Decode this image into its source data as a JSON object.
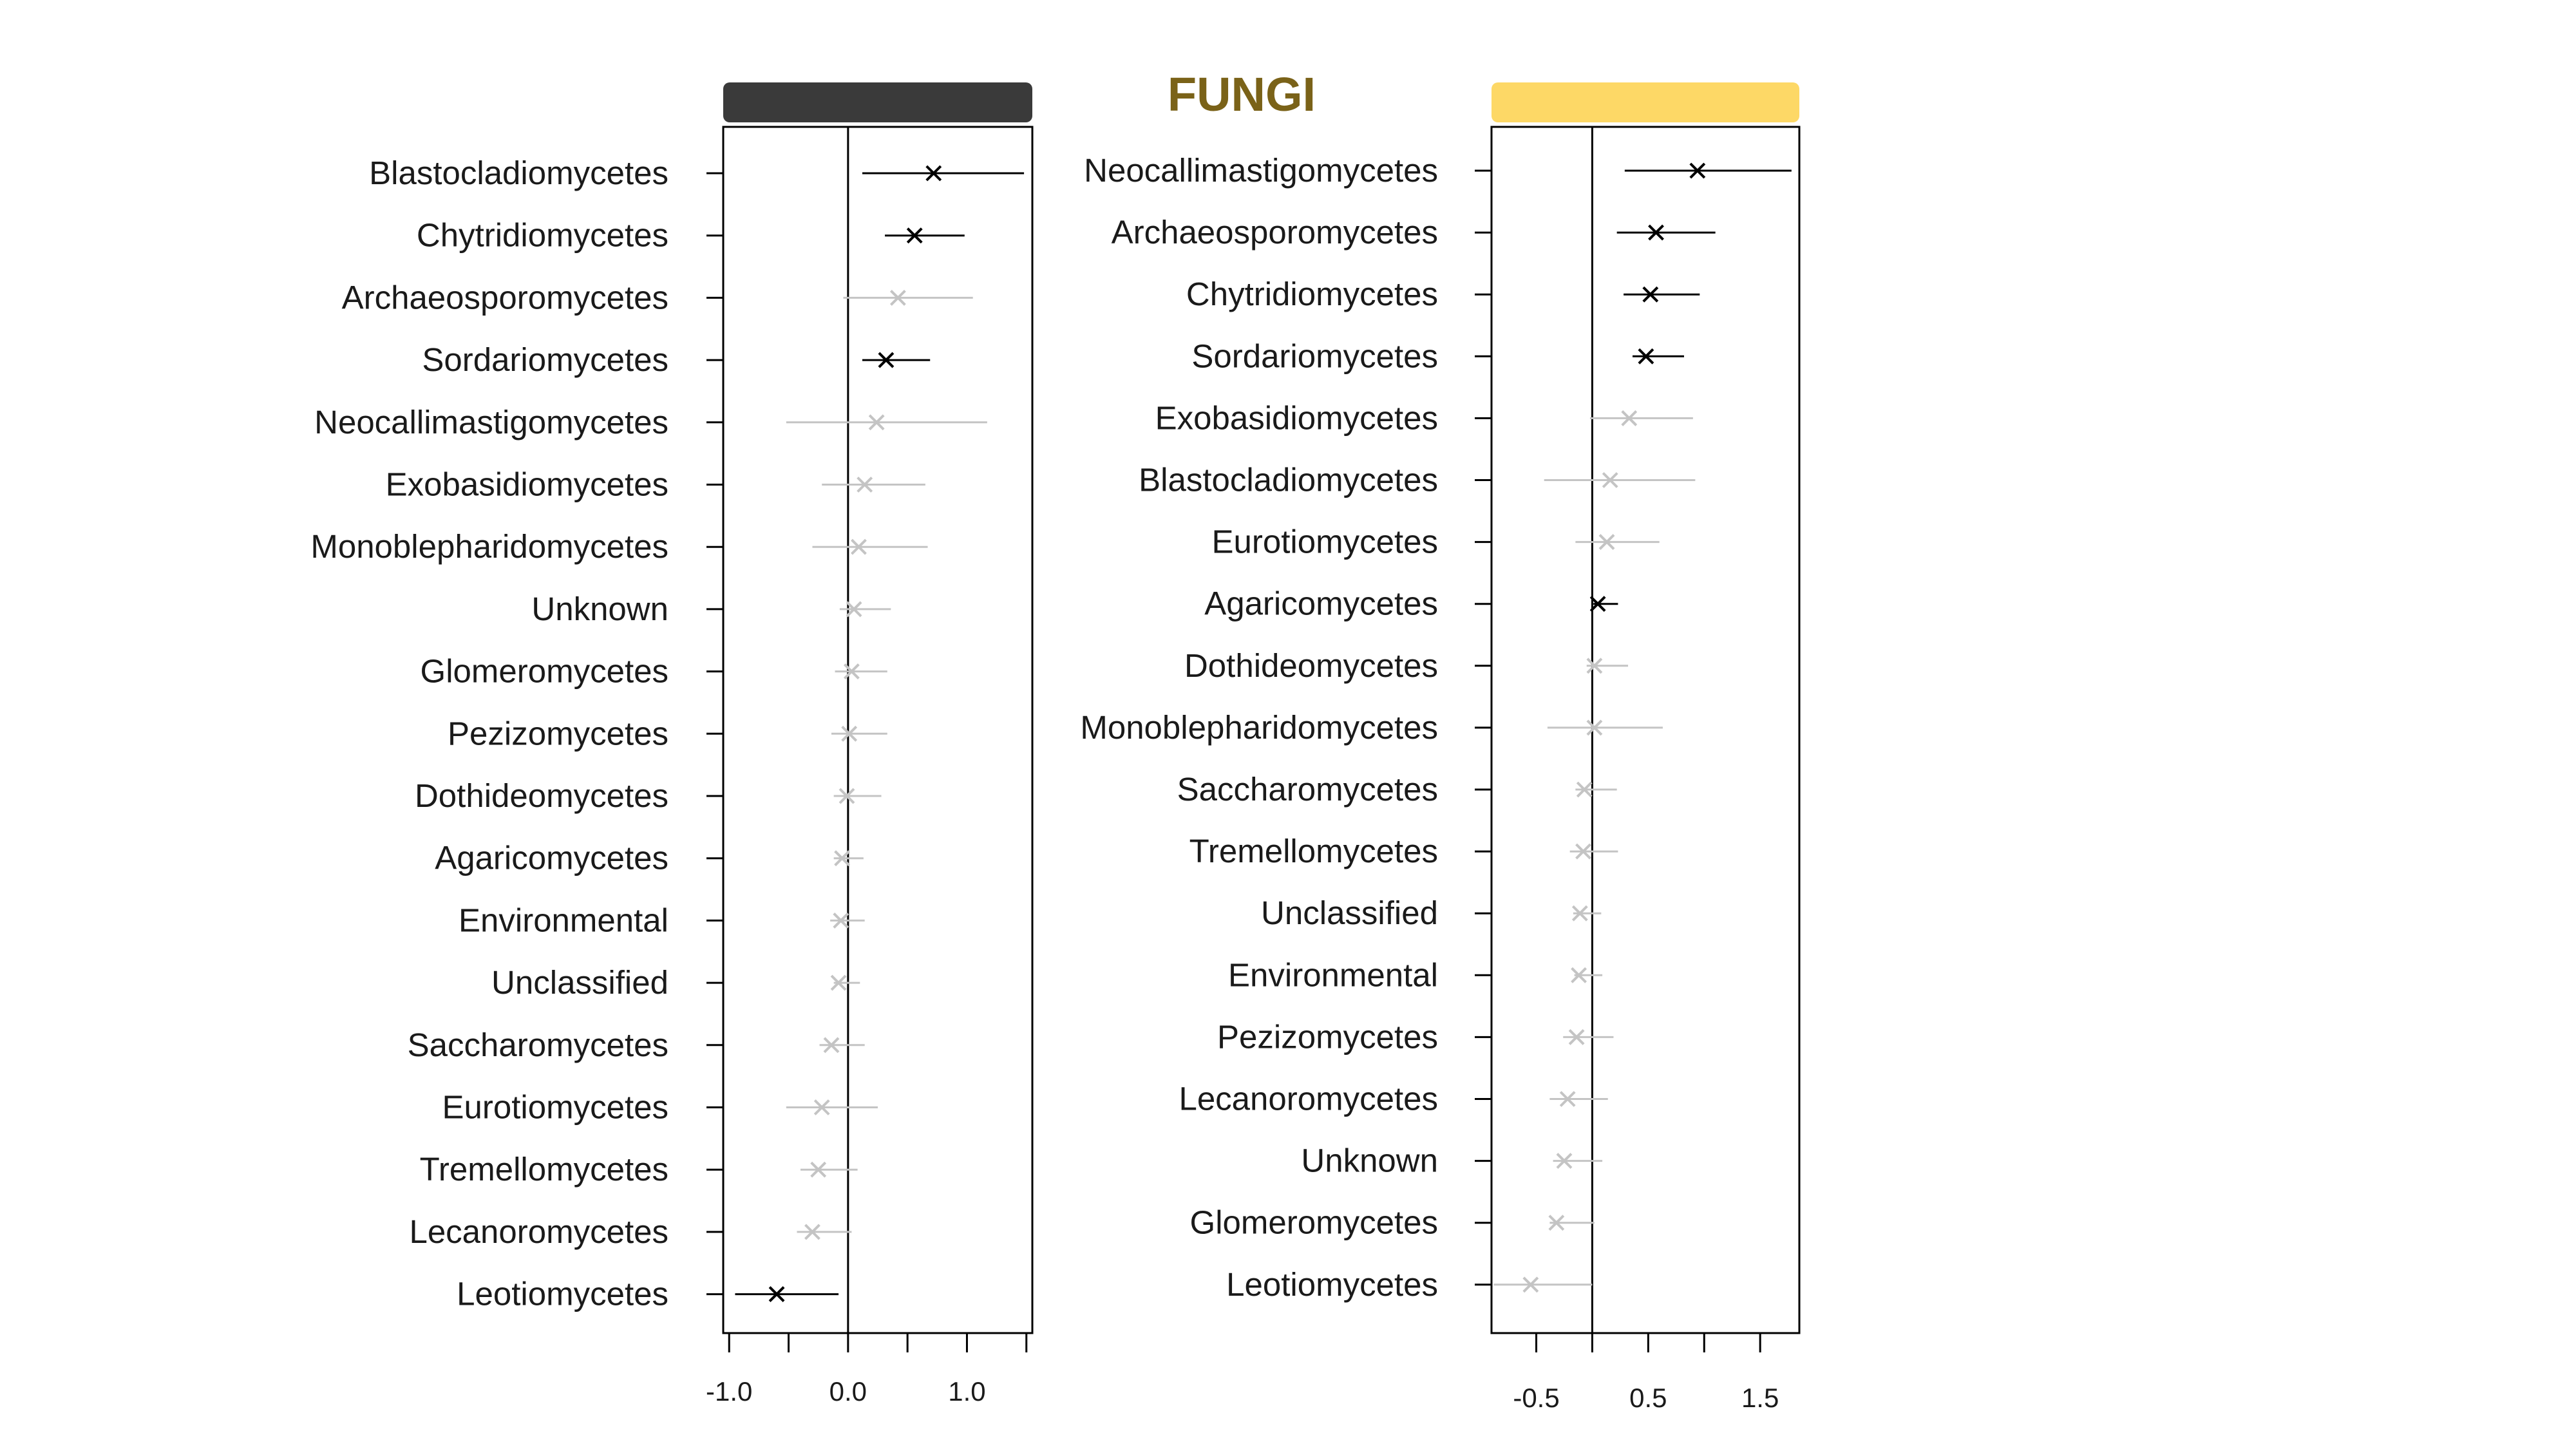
{
  "title": "FUNGI",
  "colors": {
    "title": "#7a6218",
    "left_header_bar": "#3a3a3a",
    "right_header_bar": "#fdd866",
    "significant": "#000000",
    "non_significant": "#c4c4c4",
    "axis": "#000000"
  },
  "chart_data": [
    {
      "type": "scatter",
      "style": "point-with-interval",
      "marker": "x",
      "header_bar_color": "#3a3a3a",
      "xlim": [
        -1.05,
        1.55
      ],
      "reference_line": 0,
      "x_ticks": [
        -1.0,
        -0.5,
        0.0,
        0.5,
        1.0,
        1.5
      ],
      "x_tick_labels": [
        "-1.0",
        "",
        "0.0",
        "",
        "1.0",
        ""
      ],
      "rows": [
        {
          "label": "Blastocladiomycetes",
          "est": 0.72,
          "lo": 0.12,
          "hi": 1.48,
          "significant": true
        },
        {
          "label": "Chytridiomycetes",
          "est": 0.56,
          "lo": 0.31,
          "hi": 0.98,
          "significant": true
        },
        {
          "label": "Archaeosporomycetes",
          "est": 0.42,
          "lo": -0.04,
          "hi": 1.05,
          "significant": false
        },
        {
          "label": "Sordariomycetes",
          "est": 0.32,
          "lo": 0.12,
          "hi": 0.69,
          "significant": true
        },
        {
          "label": "Neocallimastigomycetes",
          "est": 0.24,
          "lo": -0.52,
          "hi": 1.17,
          "significant": false
        },
        {
          "label": "Exobasidiomycetes",
          "est": 0.14,
          "lo": -0.22,
          "hi": 0.65,
          "significant": false
        },
        {
          "label": "Monoblepharidomycetes",
          "est": 0.09,
          "lo": -0.3,
          "hi": 0.67,
          "significant": false
        },
        {
          "label": "Unknown",
          "est": 0.05,
          "lo": -0.07,
          "hi": 0.36,
          "significant": false
        },
        {
          "label": "Glomeromycetes",
          "est": 0.03,
          "lo": -0.11,
          "hi": 0.33,
          "significant": false
        },
        {
          "label": "Pezizomycetes",
          "est": 0.01,
          "lo": -0.14,
          "hi": 0.33,
          "significant": false
        },
        {
          "label": "Dothideomycetes",
          "est": -0.01,
          "lo": -0.12,
          "hi": 0.28,
          "significant": false
        },
        {
          "label": "Agaricomycetes",
          "est": -0.05,
          "lo": -0.12,
          "hi": 0.13,
          "significant": false
        },
        {
          "label": "Environmental",
          "est": -0.06,
          "lo": -0.15,
          "hi": 0.14,
          "significant": false
        },
        {
          "label": "Unclassified",
          "est": -0.08,
          "lo": -0.12,
          "hi": 0.1,
          "significant": false
        },
        {
          "label": "Saccharomycetes",
          "est": -0.14,
          "lo": -0.24,
          "hi": 0.14,
          "significant": false
        },
        {
          "label": "Eurotiomycetes",
          "est": -0.22,
          "lo": -0.52,
          "hi": 0.25,
          "significant": false
        },
        {
          "label": "Tremellomycetes",
          "est": -0.25,
          "lo": -0.4,
          "hi": 0.08,
          "significant": false
        },
        {
          "label": "Lecanoromycetes",
          "est": -0.3,
          "lo": -0.43,
          "hi": 0.03,
          "significant": false
        },
        {
          "label": "Leotiomycetes",
          "est": -0.6,
          "lo": -0.95,
          "hi": -0.08,
          "significant": true
        }
      ]
    },
    {
      "type": "scatter",
      "style": "point-with-interval",
      "marker": "x",
      "header_bar_color": "#fdd866",
      "xlim": [
        -0.9,
        1.85
      ],
      "reference_line": 0,
      "x_ticks": [
        -0.5,
        0.0,
        0.5,
        1.0,
        1.5
      ],
      "x_tick_labels": [
        "-0.5",
        "",
        "0.5",
        "",
        "1.5"
      ],
      "rows": [
        {
          "label": "Neocallimastigomycetes",
          "est": 0.94,
          "lo": 0.29,
          "hi": 1.78,
          "significant": true
        },
        {
          "label": "Archaeosporomycetes",
          "est": 0.57,
          "lo": 0.22,
          "hi": 1.1,
          "significant": true
        },
        {
          "label": "Chytridiomycetes",
          "est": 0.52,
          "lo": 0.28,
          "hi": 0.96,
          "significant": true
        },
        {
          "label": "Sordariomycetes",
          "est": 0.48,
          "lo": 0.36,
          "hi": 0.82,
          "significant": true
        },
        {
          "label": "Exobasidiomycetes",
          "est": 0.33,
          "lo": -0.02,
          "hi": 0.9,
          "significant": false
        },
        {
          "label": "Blastocladiomycetes",
          "est": 0.16,
          "lo": -0.43,
          "hi": 0.92,
          "significant": false
        },
        {
          "label": "Eurotiomycetes",
          "est": 0.13,
          "lo": -0.15,
          "hi": 0.6,
          "significant": false
        },
        {
          "label": "Agaricomycetes",
          "est": 0.05,
          "lo": 0.01,
          "hi": 0.23,
          "significant": true
        },
        {
          "label": "Dothideomycetes",
          "est": 0.02,
          "lo": -0.05,
          "hi": 0.32,
          "significant": false
        },
        {
          "label": "Monoblepharidomycetes",
          "est": 0.02,
          "lo": -0.4,
          "hi": 0.63,
          "significant": false
        },
        {
          "label": "Saccharomycetes",
          "est": -0.07,
          "lo": -0.15,
          "hi": 0.22,
          "significant": false
        },
        {
          "label": "Tremellomycetes",
          "est": -0.08,
          "lo": -0.2,
          "hi": 0.23,
          "significant": false
        },
        {
          "label": "Unclassified",
          "est": -0.11,
          "lo": -0.17,
          "hi": 0.08,
          "significant": false
        },
        {
          "label": "Environmental",
          "est": -0.12,
          "lo": -0.16,
          "hi": 0.09,
          "significant": false
        },
        {
          "label": "Pezizomycetes",
          "est": -0.14,
          "lo": -0.26,
          "hi": 0.19,
          "significant": false
        },
        {
          "label": "Lecanoromycetes",
          "est": -0.22,
          "lo": -0.38,
          "hi": 0.14,
          "significant": false
        },
        {
          "label": "Unknown",
          "est": -0.25,
          "lo": -0.35,
          "hi": 0.09,
          "significant": false
        },
        {
          "label": "Glomeromycetes",
          "est": -0.32,
          "lo": -0.38,
          "hi": 0.02,
          "significant": false
        },
        {
          "label": "Leotiomycetes",
          "est": -0.55,
          "lo": -0.88,
          "hi": 0.0,
          "significant": false
        }
      ]
    }
  ]
}
